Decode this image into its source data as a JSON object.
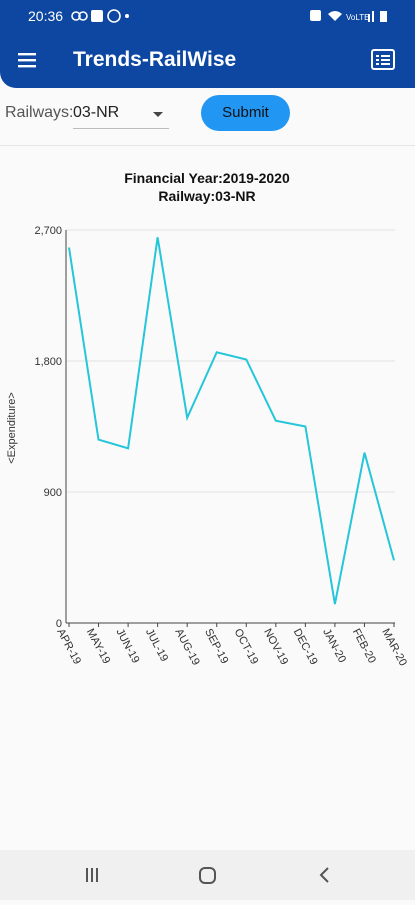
{
  "status_bar": {
    "time": "20:36"
  },
  "app_bar": {
    "title": "Trends-RailWise"
  },
  "controls": {
    "dropdown_label": "Railways:",
    "dropdown_value": "03-NR",
    "button": "Submit"
  },
  "chart_data": {
    "type": "line",
    "title": "Financial Year:2019-2020",
    "subtitle": "Railway:03-NR",
    "y_label": "<Expenditure>",
    "categories": [
      "APR-19",
      "MAY-19",
      "JUN-19",
      "JUL-19",
      "AUG-19",
      "SEP-19",
      "OCT-19",
      "NOV-19",
      "DEC-19",
      "JAN-20",
      "FEB-20",
      "MAR-20"
    ],
    "series": [
      {
        "name": "Expenditure",
        "color": "#26c6da",
        "values": [
          2580,
          1260,
          1200,
          2650,
          1410,
          1860,
          1810,
          1390,
          1350,
          130,
          1170,
          430
        ]
      }
    ],
    "ylim": [
      0,
      2700
    ],
    "yticks": [
      0,
      {
        "value": 900,
        "label": "900"
      },
      {
        "value": 1800,
        "label": "1,800"
      },
      {
        "value": 2700,
        "label": "2,700"
      }
    ],
    "grid": true
  }
}
